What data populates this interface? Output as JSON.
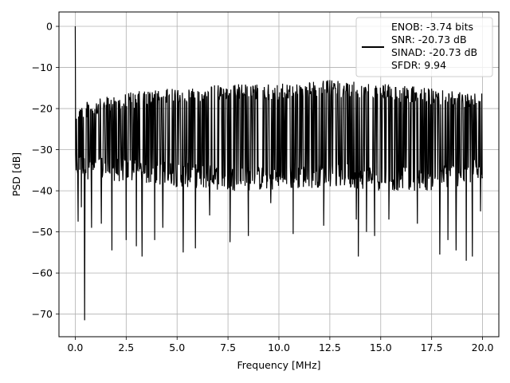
{
  "chart_data": {
    "type": "line",
    "title": "",
    "xlabel": "Frequency [MHz]",
    "ylabel": "PSD [dB]",
    "xlim": [
      -0.8,
      20.8
    ],
    "ylim": [
      -75.5,
      3.5
    ],
    "xticks": [
      0.0,
      2.5,
      5.0,
      7.5,
      10.0,
      12.5,
      15.0,
      17.5,
      20.0
    ],
    "xtick_labels": [
      "0.0",
      "2.5",
      "5.0",
      "7.5",
      "10.0",
      "12.5",
      "15.0",
      "17.5",
      "20.0"
    ],
    "yticks": [
      0,
      -10,
      -20,
      -30,
      -40,
      -50,
      -60,
      -70
    ],
    "ytick_labels": [
      "0",
      "−10",
      "−20",
      "−30",
      "−40",
      "−50",
      "−60",
      "−70"
    ],
    "grid": true,
    "legend": {
      "placement": "top-right",
      "entries": [
        "ENOB: -3.74 bits",
        "SNR: -20.73 dB",
        "SINAD: -20.73 dB",
        "SFDR: 9.94"
      ]
    },
    "series": [
      {
        "color": "#000000",
        "x_start": 0.0,
        "x_end": 20.0,
        "x_step": 0.02,
        "baseline_envelope": {
          "x": [
            0.0,
            2.5,
            5.0,
            7.5,
            10.0,
            12.5,
            15.0,
            17.5,
            20.0
          ],
          "upper": [
            -19,
            -16,
            -15,
            -14,
            -14,
            -13,
            -14,
            -15,
            -16
          ],
          "lower": [
            -37,
            -38,
            -39,
            -40,
            -40,
            -39,
            -40,
            -40,
            -38
          ]
        },
        "features": [
          {
            "x": 0.0,
            "y": 0.0
          },
          {
            "x": 0.04,
            "y": -35
          },
          {
            "x": 0.14,
            "y": -47.5
          },
          {
            "x": 0.3,
            "y": -44
          },
          {
            "x": 0.46,
            "y": -71.5
          },
          {
            "x": 0.8,
            "y": -49
          },
          {
            "x": 1.28,
            "y": -48
          },
          {
            "x": 1.8,
            "y": -54.5
          },
          {
            "x": 2.5,
            "y": -52
          },
          {
            "x": 3.0,
            "y": -53.5
          },
          {
            "x": 3.28,
            "y": -56
          },
          {
            "x": 3.9,
            "y": -52
          },
          {
            "x": 4.3,
            "y": -49
          },
          {
            "x": 5.3,
            "y": -55
          },
          {
            "x": 5.9,
            "y": -54
          },
          {
            "x": 6.6,
            "y": -46
          },
          {
            "x": 7.6,
            "y": -52.5
          },
          {
            "x": 8.5,
            "y": -51
          },
          {
            "x": 9.6,
            "y": -43
          },
          {
            "x": 10.7,
            "y": -50.5
          },
          {
            "x": 12.2,
            "y": -48.5
          },
          {
            "x": 13.8,
            "y": -47
          },
          {
            "x": 13.9,
            "y": -56
          },
          {
            "x": 14.3,
            "y": -50
          },
          {
            "x": 14.7,
            "y": -51
          },
          {
            "x": 15.4,
            "y": -47
          },
          {
            "x": 16.8,
            "y": -48
          },
          {
            "x": 17.9,
            "y": -55.5
          },
          {
            "x": 18.3,
            "y": -52
          },
          {
            "x": 18.7,
            "y": -54.5
          },
          {
            "x": 19.2,
            "y": -57
          },
          {
            "x": 19.5,
            "y": -56
          },
          {
            "x": 19.9,
            "y": -45
          }
        ]
      }
    ]
  }
}
